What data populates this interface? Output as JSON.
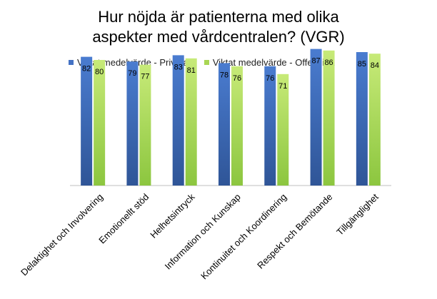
{
  "chart_data": {
    "type": "bar",
    "title_lines": [
      "Hur nöjda är patienterna med olika",
      "aspekter med vårdcentralen? (VGR)"
    ],
    "categories": [
      "Delaktighet och Involvering",
      "Emotionellt stöd",
      "Helhetsintryck",
      "Information och Kunskap",
      "Kontinuitet och Koordinering",
      "Respekt och Bemötande",
      "Tillgänglighet"
    ],
    "series": [
      {
        "name": "Viktat medelvärde - Privata",
        "color": "#4472C4",
        "values": [
          82,
          79,
          83,
          78,
          76,
          87,
          85
        ]
      },
      {
        "name": "Viktat medelvärde - Offentliga",
        "color": "#A9D654",
        "values": [
          80,
          77,
          81,
          76,
          71,
          86,
          84
        ]
      }
    ],
    "ylim": [
      0,
      100
    ],
    "grid": false,
    "legend_position": "top"
  }
}
